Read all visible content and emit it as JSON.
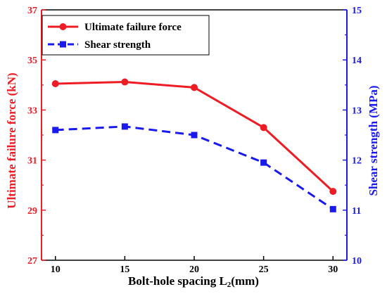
{
  "chart_data": {
    "type": "line",
    "x": [
      10,
      15,
      20,
      25,
      30
    ],
    "xlabel": "Bolt-hole spacing L₂(mm)",
    "xlabel_main": "Bolt-hole spacing L",
    "xlabel_sub": "2",
    "xlabel_tail": "(mm)",
    "xlim": [
      9,
      31
    ],
    "xticks": [
      "10",
      "15",
      "20",
      "25",
      "30"
    ],
    "ylabel_left": "Ultimate failure force (kN)",
    "ylim_left": [
      27,
      37
    ],
    "yticks_left": [
      "27",
      "29",
      "31",
      "33",
      "35",
      "37"
    ],
    "ylabel_right": "Shear strength (MPa)",
    "ylim_right": [
      10,
      15
    ],
    "yticks_right": [
      "10",
      "11",
      "12",
      "13",
      "14",
      "15"
    ],
    "grid": false,
    "legend_position": "top-left",
    "series": [
      {
        "name": "Ultimate failure force",
        "axis": "left",
        "values": [
          34.05,
          34.12,
          33.9,
          32.3,
          29.75
        ],
        "color": "#ee1c25",
        "line": "solid",
        "marker": "circle"
      },
      {
        "name": "Shear strength",
        "axis": "right",
        "values": [
          12.6,
          12.67,
          12.5,
          11.95,
          11.02
        ],
        "color": "#1a1aee",
        "line": "dashed",
        "marker": "square"
      }
    ]
  },
  "colors": {
    "left_axis": "#ee1c25",
    "right_axis": "#1a1aee",
    "frame": "#000000"
  }
}
